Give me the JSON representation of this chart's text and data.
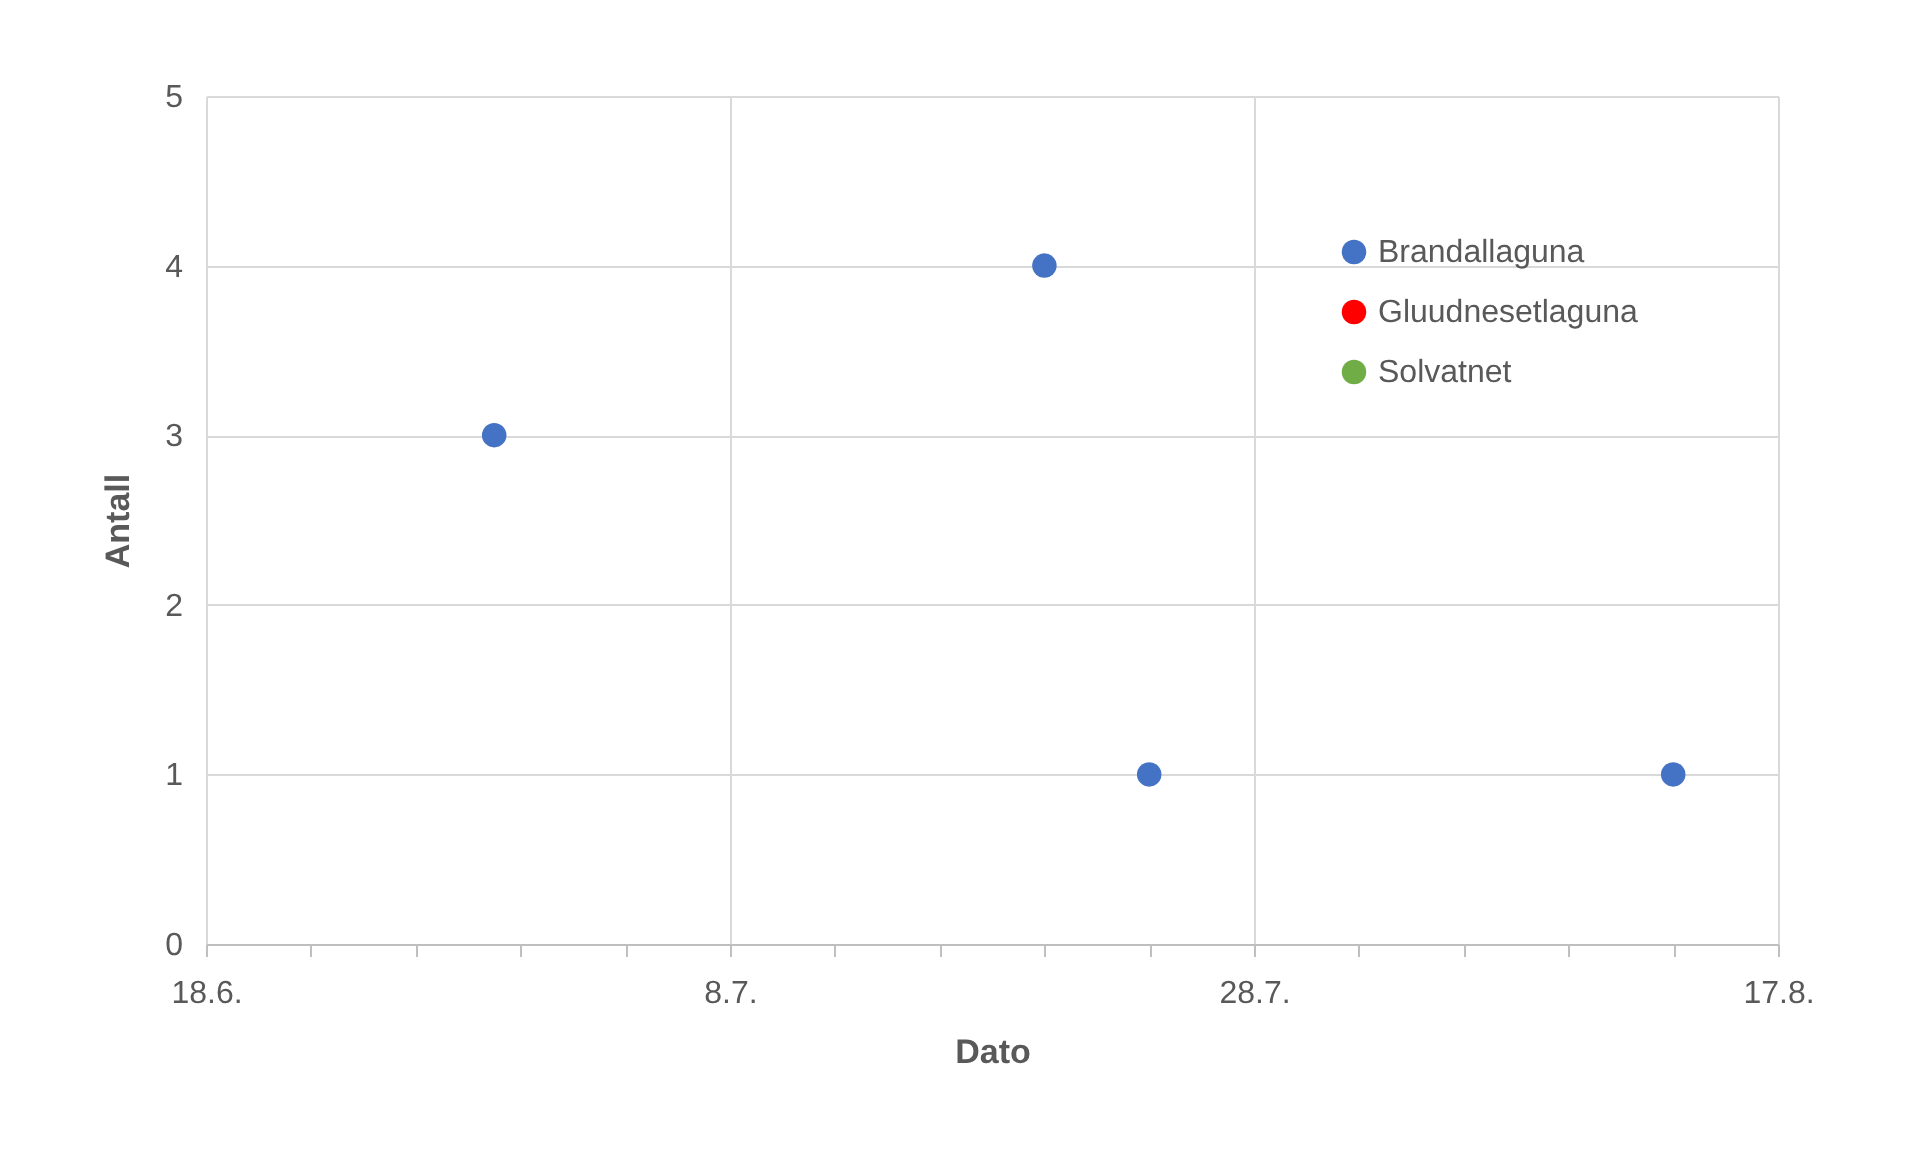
{
  "chart_data": {
    "type": "scatter",
    "xlabel": "Dato",
    "ylabel": "Antall",
    "xlim": [
      "--06-18",
      "--08-17"
    ],
    "xticks": [
      {
        "value": "--06-18",
        "label": "18.6."
      },
      {
        "value": "--06-22",
        "label": null
      },
      {
        "value": "--06-26",
        "label": null
      },
      {
        "value": "--06-30",
        "label": null
      },
      {
        "value": "--07-04",
        "label": null
      },
      {
        "value": "--07-08",
        "label": "8.7."
      },
      {
        "value": "--07-12",
        "label": null
      },
      {
        "value": "--07-16",
        "label": null
      },
      {
        "value": "--07-20",
        "label": null
      },
      {
        "value": "--07-24",
        "label": null
      },
      {
        "value": "--07-28",
        "label": "28.7."
      },
      {
        "value": "--08-01",
        "label": null
      },
      {
        "value": "--08-05",
        "label": null
      },
      {
        "value": "--08-09",
        "label": null
      },
      {
        "value": "--08-13",
        "label": null
      },
      {
        "value": "--08-17",
        "label": "17.8."
      }
    ],
    "ylim": [
      0,
      5
    ],
    "yticks": [
      0,
      1,
      2,
      3,
      4,
      5
    ],
    "grid": true,
    "legend": "top right",
    "marker": "circle",
    "series": [
      {
        "name": "Brandallaguna",
        "color": "#4472c4",
        "x": [
          "--06-29",
          "--07-20",
          "--07-24",
          "--08-13"
        ],
        "values": [
          3,
          4,
          1,
          1
        ]
      },
      {
        "name": "Gluudnesetlaguna",
        "color": "#ff0000"
      },
      {
        "name": "Solvatnet",
        "color": "#70ad47"
      }
    ]
  }
}
